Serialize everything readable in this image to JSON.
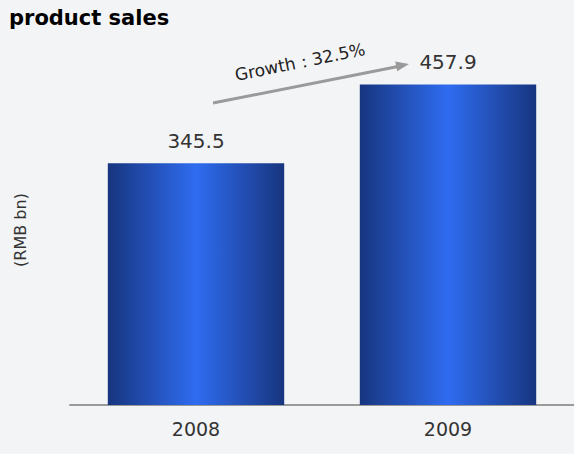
{
  "chart_data": {
    "type": "bar",
    "title": "product sales",
    "ylabel": "(RMB bn)",
    "annotation": "Growth：32.5%",
    "categories": [
      "2008",
      "2009"
    ],
    "values": [
      345.5,
      457.9
    ],
    "color": "#2f6cf0",
    "ylim": [
      0,
      500
    ],
    "grid": false,
    "data_labels": true,
    "tick_labels": "x"
  }
}
